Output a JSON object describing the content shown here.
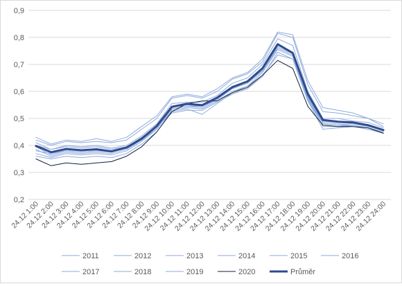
{
  "chart_data": {
    "type": "line",
    "title": "",
    "xlabel": "",
    "ylabel": "",
    "ylim": [
      0.2,
      0.9
    ],
    "y_ticks": [
      "0,2",
      "0,3",
      "0,4",
      "0,5",
      "0,6",
      "0,7",
      "0,8",
      "0,9"
    ],
    "grid": "horizontal",
    "legend_position": "bottom",
    "categories": [
      "24.12 1:00",
      "24.12 2:00",
      "24.12 3:00",
      "24.12 4:00",
      "24.12 5:00",
      "24.12 6:00",
      "24.12 7:00",
      "24.12 8:00",
      "24.12 9:00",
      "24.12 10:00",
      "24.12 11:00",
      "24.12 12:00",
      "24.12 13:00",
      "24.12 14:00",
      "24.12 15:00",
      "24.12 16:00",
      "24.12 17:00",
      "24.12 18:00",
      "24.12 19:00",
      "24.12 20:00",
      "24.12 21:00",
      "24.12 22:00",
      "24.12 23:00",
      "24.12 24:00"
    ],
    "series": [
      {
        "name": "2011",
        "color": "#8faadc",
        "width": 1,
        "values": [
          0.43,
          0.405,
          0.42,
          0.415,
          0.425,
          0.415,
          0.43,
          0.47,
          0.51,
          0.58,
          0.59,
          0.58,
          0.61,
          0.65,
          0.67,
          0.72,
          0.82,
          0.81,
          0.64,
          0.54,
          0.53,
          0.52,
          0.5,
          0.48
        ]
      },
      {
        "name": "2012",
        "color": "#8faadc",
        "width": 1,
        "values": [
          0.42,
          0.4,
          0.415,
          0.41,
          0.415,
          0.41,
          0.42,
          0.46,
          0.5,
          0.575,
          0.585,
          0.575,
          0.6,
          0.645,
          0.665,
          0.71,
          0.815,
          0.8,
          0.625,
          0.525,
          0.52,
          0.51,
          0.5,
          0.47
        ]
      },
      {
        "name": "2013",
        "color": "#8faadc",
        "width": 1,
        "values": [
          0.4,
          0.385,
          0.4,
          0.395,
          0.4,
          0.39,
          0.4,
          0.435,
          0.48,
          0.555,
          0.56,
          0.56,
          0.585,
          0.63,
          0.65,
          0.7,
          0.795,
          0.77,
          0.6,
          0.5,
          0.5,
          0.49,
          0.485,
          0.465
        ]
      },
      {
        "name": "2014",
        "color": "#8faadc",
        "width": 1,
        "values": [
          0.38,
          0.37,
          0.38,
          0.375,
          0.38,
          0.375,
          0.39,
          0.42,
          0.465,
          0.54,
          0.55,
          0.545,
          0.575,
          0.615,
          0.635,
          0.685,
          0.77,
          0.745,
          0.58,
          0.49,
          0.485,
          0.48,
          0.47,
          0.455
        ]
      },
      {
        "name": "2015",
        "color": "#8faadc",
        "width": 1,
        "values": [
          0.37,
          0.355,
          0.37,
          0.365,
          0.37,
          0.365,
          0.38,
          0.415,
          0.46,
          0.535,
          0.545,
          0.54,
          0.57,
          0.61,
          0.63,
          0.68,
          0.765,
          0.74,
          0.575,
          0.485,
          0.48,
          0.475,
          0.465,
          0.45
        ]
      },
      {
        "name": "2016",
        "color": "#8faadc",
        "width": 1,
        "values": [
          0.36,
          0.35,
          0.36,
          0.355,
          0.36,
          0.355,
          0.37,
          0.405,
          0.45,
          0.53,
          0.54,
          0.535,
          0.565,
          0.6,
          0.62,
          0.67,
          0.755,
          0.73,
          0.57,
          0.48,
          0.475,
          0.47,
          0.46,
          0.445
        ]
      },
      {
        "name": "2017",
        "color": "#8faadc",
        "width": 1,
        "values": [
          0.385,
          0.36,
          0.375,
          0.37,
          0.375,
          0.37,
          0.385,
          0.42,
          0.46,
          0.535,
          0.545,
          0.545,
          0.57,
          0.61,
          0.63,
          0.675,
          0.76,
          0.735,
          0.575,
          0.48,
          0.475,
          0.475,
          0.465,
          0.45
        ]
      },
      {
        "name": "2018",
        "color": "#8faadc",
        "width": 1,
        "values": [
          0.395,
          0.365,
          0.38,
          0.375,
          0.38,
          0.375,
          0.39,
          0.425,
          0.47,
          0.525,
          0.535,
          0.515,
          0.555,
          0.595,
          0.62,
          0.66,
          0.735,
          0.72,
          0.565,
          0.46,
          0.465,
          0.47,
          0.46,
          0.445
        ]
      },
      {
        "name": "2019",
        "color": "#8faadc",
        "width": 1,
        "values": [
          0.41,
          0.385,
          0.395,
          0.39,
          0.395,
          0.385,
          0.395,
          0.43,
          0.47,
          0.52,
          0.53,
          0.53,
          0.56,
          0.59,
          0.61,
          0.655,
          0.745,
          0.72,
          0.57,
          0.47,
          0.47,
          0.475,
          0.465,
          0.45
        ]
      },
      {
        "name": "2020",
        "color": "#0d1f3c",
        "width": 1,
        "values": [
          0.35,
          0.325,
          0.335,
          0.33,
          0.335,
          0.34,
          0.36,
          0.395,
          0.45,
          0.525,
          0.555,
          0.565,
          0.565,
          0.595,
          0.615,
          0.66,
          0.715,
          0.685,
          0.545,
          0.475,
          0.47,
          0.47,
          0.465,
          0.445
        ]
      },
      {
        "name": "Průměr",
        "color": "#2e4b8f",
        "width": 3,
        "values": [
          0.398,
          0.375,
          0.387,
          0.382,
          0.386,
          0.378,
          0.392,
          0.425,
          0.472,
          0.543,
          0.554,
          0.549,
          0.577,
          0.616,
          0.637,
          0.686,
          0.775,
          0.742,
          0.59,
          0.494,
          0.488,
          0.485,
          0.475,
          0.457
        ]
      }
    ]
  }
}
